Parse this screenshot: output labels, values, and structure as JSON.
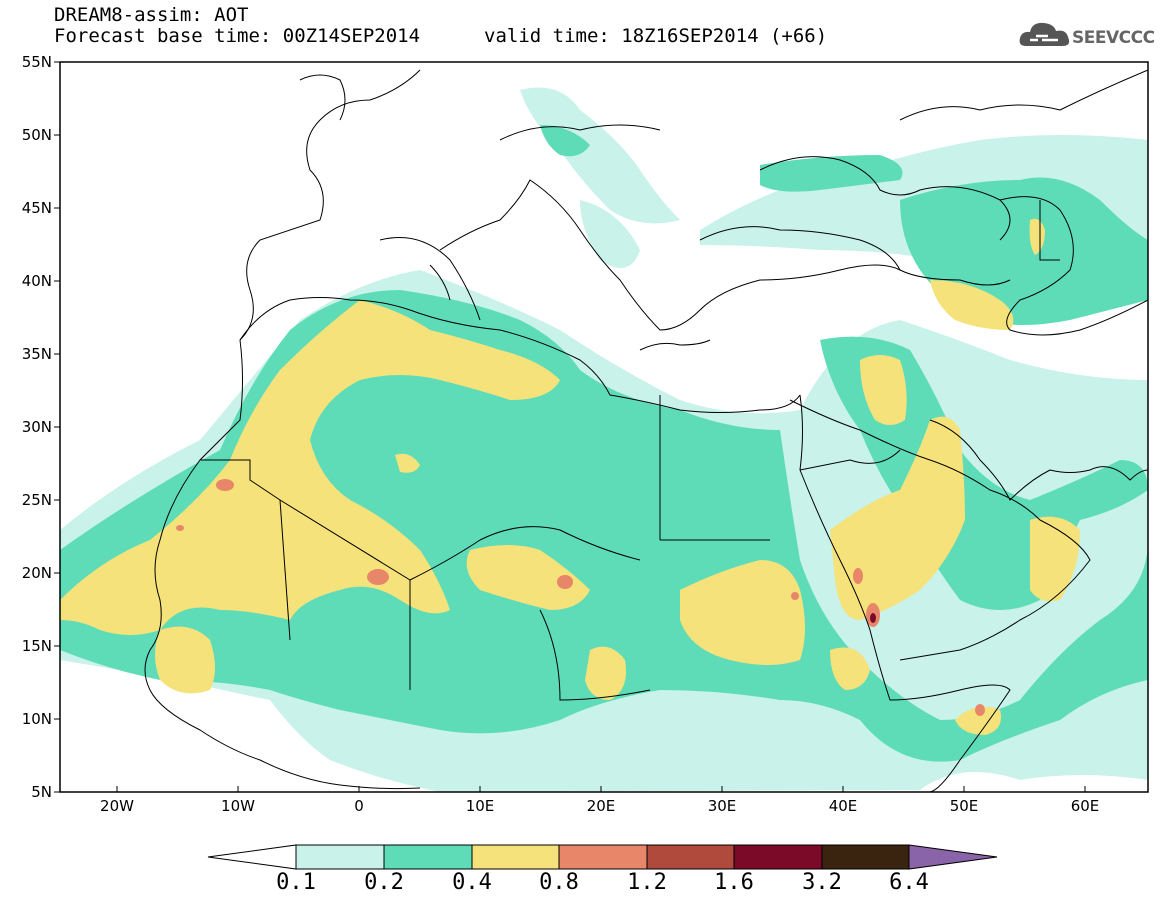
{
  "title": {
    "line1": "DREAM8-assim: AOT",
    "line2": "Forecast base time: 00Z14SEP2014",
    "valid": "valid time: 18Z16SEP2014 (+66)"
  },
  "logo": {
    "text": "SEEVCCC",
    "icon": "cloud-icon"
  },
  "axes": {
    "lat_labels": [
      "55N",
      "50N",
      "45N",
      "40N",
      "35N",
      "30N",
      "25N",
      "20N",
      "15N",
      "10N",
      "5N"
    ],
    "lon_labels": [
      "20W",
      "10W",
      "0",
      "10E",
      "20E",
      "30E",
      "40E",
      "50E",
      "60E"
    ]
  },
  "colorbar": {
    "levels": [
      "0.1",
      "0.2",
      "0.4",
      "0.8",
      "1.2",
      "1.6",
      "3.2",
      "6.4"
    ],
    "colors": [
      "#c8f2ea",
      "#5edcb8",
      "#f5e27a",
      "#e8866a",
      "#b04a3c",
      "#7a0a28",
      "#3a2410",
      "#8a64a8"
    ]
  },
  "field_colors": {
    "c01": "#c8f2ea",
    "c02": "#5edcb8",
    "c04": "#f5e27a",
    "c08": "#e8866a",
    "c16": "#7a0a28"
  }
}
